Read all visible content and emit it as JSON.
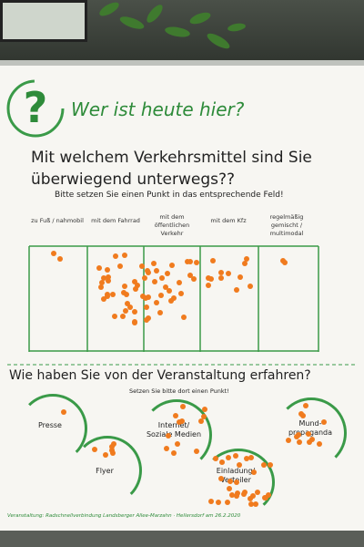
{
  "poster": {
    "title": "Wer ist heute hier?",
    "question1_line1": "Mit welchem Verkehrsmittel sind Sie",
    "question1_line2": "überwiegend unterwegs??",
    "instruction1": "Bitte setzen Sie einen Punkt in das entsprechende Feld!",
    "columns": [
      {
        "label": "zu Fuß / nahmobil",
        "dots": 2
      },
      {
        "label": "mit dem Fahrrad",
        "dots": 38
      },
      {
        "label": "mit dem öffentlichen Verkehr",
        "dots": 21
      },
      {
        "label": "mit dem Kfz",
        "dots": 12
      },
      {
        "label": "regelmäßig gemischt / multimodal",
        "dots": 2
      }
    ],
    "question2": "Wie haben Sie von der Veranstaltung erfahren?",
    "instruction2": "Setzen Sie bitte dort einen Punkt!",
    "channels": [
      {
        "label": "Presse",
        "dots": 1
      },
      {
        "label": "Flyer",
        "dots": 6
      },
      {
        "label": "Internet/ Soziale Medien",
        "dots": 12
      },
      {
        "label": "Einladung/ Verteiler",
        "dots": 30
      },
      {
        "label": "Mund- propaganda",
        "dots": 12
      }
    ],
    "footer": "Veranstaltung: Radschnellverbindung Landsberger Allee-Marzahn · Hellersdorf am 26.2.2020",
    "dot_color": "#f07b1e",
    "accent_color": "#2e8b3a"
  }
}
